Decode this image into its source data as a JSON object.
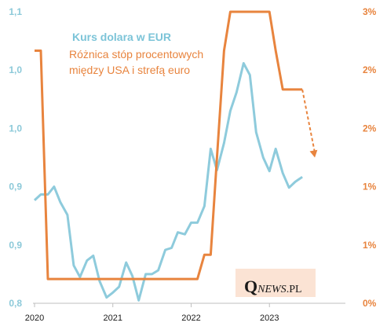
{
  "colors": {
    "usd_line": "#8ecbdc",
    "diff_line": "#e8843e",
    "left_axis_text": "#8cc9d9",
    "right_axis_text": "#e8843e",
    "brand_bg": "#fbe3d4",
    "axis": "#bfbfbf"
  },
  "brand": {
    "q": "Q",
    "news": "NEWS",
    "pl": ".PL"
  },
  "chart_data": {
    "type": "line",
    "legend": [
      "Kurs dolara w EUR",
      "Różnica stóp procentowych",
      "między USA i strefą euro"
    ],
    "x_ticks": [
      "2020",
      "2021",
      "2022",
      "2023"
    ],
    "y_left_ticks": [
      "1,1",
      "1,0",
      "1,0",
      "0,9",
      "0,9",
      "0,8"
    ],
    "y_right_ticks": [
      "3%",
      "2%",
      "2%",
      "1%",
      "1%",
      "0%"
    ],
    "y_left_range": [
      0.8,
      1.1
    ],
    "y_right_range": [
      0,
      3
    ],
    "x_range": [
      2020,
      2023.9
    ],
    "series": [
      {
        "name": "Kurs dolara w EUR",
        "axis": "left",
        "x": [
          2020.0,
          2020.08,
          2020.17,
          2020.25,
          2020.33,
          2020.42,
          2020.5,
          2020.58,
          2020.67,
          2020.75,
          2020.83,
          2020.92,
          2021.0,
          2021.08,
          2021.17,
          2021.25,
          2021.33,
          2021.42,
          2021.5,
          2021.58,
          2021.67,
          2021.75,
          2021.83,
          2021.92,
          2022.0,
          2022.08,
          2022.17,
          2022.25,
          2022.33,
          2022.42,
          2022.5,
          2022.58,
          2022.67,
          2022.75,
          2022.83,
          2022.92,
          2023.0,
          2023.08,
          2023.17,
          2023.25,
          2023.33,
          2023.42
        ],
        "values": [
          0.906,
          0.912,
          0.912,
          0.92,
          0.904,
          0.891,
          0.839,
          0.827,
          0.844,
          0.849,
          0.823,
          0.806,
          0.811,
          0.817,
          0.842,
          0.828,
          0.803,
          0.83,
          0.83,
          0.834,
          0.855,
          0.857,
          0.873,
          0.871,
          0.883,
          0.883,
          0.9,
          0.959,
          0.937,
          0.965,
          0.998,
          1.017,
          1.047,
          1.035,
          0.976,
          0.95,
          0.936,
          0.959,
          0.934,
          0.919,
          0.925,
          0.93
        ]
      },
      {
        "name": "Różnica stóp procentowych między USA i strefą euro",
        "axis": "right",
        "x": [
          2020.0,
          2020.08,
          2020.17,
          2020.25,
          2021.0,
          2022.08,
          2022.17,
          2022.25,
          2022.33,
          2022.42,
          2022.5,
          2022.58,
          2022.67,
          2022.75,
          2022.83,
          2022.92,
          2023.0,
          2023.08,
          2023.17,
          2023.25,
          2023.33,
          2023.42
        ],
        "values": [
          2.6,
          2.6,
          0.25,
          0.25,
          0.25,
          0.25,
          0.5,
          0.5,
          1.5,
          2.6,
          3.0,
          3.0,
          3.0,
          3.0,
          3.0,
          3.0,
          3.0,
          2.6,
          2.2,
          2.2,
          2.2,
          2.2
        ]
      }
    ],
    "projection": {
      "axis": "right",
      "from": [
        2023.42,
        2.2
      ],
      "to": [
        2023.58,
        1.5
      ]
    }
  }
}
